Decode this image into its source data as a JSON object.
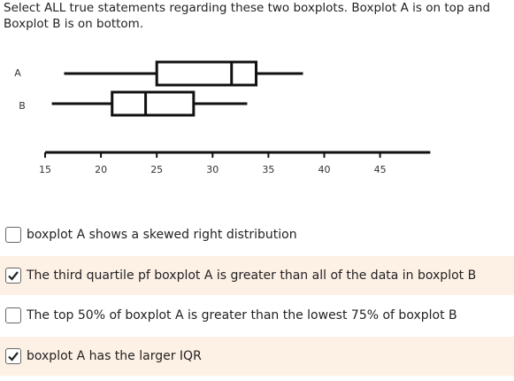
{
  "question": "Select ALL true statements regarding these two boxplots.  Boxplot A is on top and Boxplot B is on bottom.",
  "chart_data": {
    "type": "boxplot",
    "series": [
      {
        "name": "A",
        "min": 16.7,
        "q1": 25,
        "median": 31.7,
        "q3": 33.9,
        "max": 38.1
      },
      {
        "name": "B",
        "min": 15.6,
        "q1": 21,
        "median": 24,
        "q3": 28.3,
        "max": 33.1
      }
    ],
    "xlim": [
      15,
      49.5
    ],
    "xticks": [
      15,
      20,
      25,
      30,
      35,
      40,
      45
    ]
  },
  "options": [
    {
      "text": "boxplot A shows a skewed right distribution",
      "checked": false
    },
    {
      "text": "The third quartile pf boxplot A is greater than all of the data in boxplot B",
      "checked": true
    },
    {
      "text": "The top 50% of boxplot A is greater than the lowest 75% of boxplot B",
      "checked": false
    },
    {
      "text": "boxplot A has the larger IQR",
      "checked": true
    }
  ]
}
